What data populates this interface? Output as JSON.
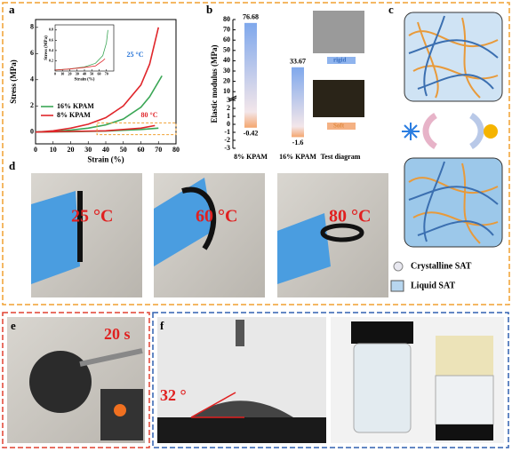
{
  "panel_labels": [
    "a",
    "b",
    "c",
    "d",
    "e",
    "f"
  ],
  "chart_data": [
    {
      "type": "line",
      "xlabel": "Strain (%)",
      "ylabel": "Stress (MPa)",
      "xlim": [
        0,
        80
      ],
      "ylim": [
        -0.9,
        8.6
      ],
      "xticks": [
        0,
        10,
        20,
        30,
        40,
        50,
        60,
        70,
        80
      ],
      "yticks": [
        0,
        2,
        4,
        6,
        8
      ],
      "series": [
        {
          "name": "16% KPAM",
          "color": "#3aa655",
          "x": [
            0,
            10,
            20,
            30,
            40,
            50,
            60,
            65,
            72
          ],
          "values": [
            0,
            0.05,
            0.15,
            0.3,
            0.55,
            1.0,
            1.9,
            2.7,
            4.3
          ]
        },
        {
          "name": "8%  KPAM",
          "color": "#e0262b",
          "x": [
            0,
            10,
            20,
            30,
            40,
            50,
            60,
            65,
            70
          ],
          "values": [
            0,
            0.1,
            0.3,
            0.6,
            1.1,
            2.0,
            3.6,
            5.2,
            8.0
          ]
        },
        {
          "color": "#3aa655",
          "x": [
            0,
            20,
            40,
            60,
            70
          ],
          "values": [
            0,
            0.03,
            0.08,
            0.2,
            0.3
          ]
        },
        {
          "color": "#e0262b",
          "x": [
            0,
            20,
            40,
            60,
            68
          ],
          "values": [
            0,
            0.05,
            0.1,
            0.3,
            0.5
          ]
        }
      ],
      "annotations": [
        "25 °C",
        "80 °C"
      ]
    },
    {
      "type": "line",
      "xlabel": "Strain (%)",
      "ylabel": "Stress (MPa)",
      "xlim": [
        0,
        80
      ],
      "ylim": [
        0,
        0.9
      ],
      "xticks": [
        0,
        10,
        20,
        30,
        40,
        50,
        60,
        70
      ],
      "yticks": [
        0.2,
        0.4,
        0.6,
        0.8
      ],
      "series": [
        {
          "color": "#3aa655",
          "x": [
            0,
            20,
            40,
            55,
            65,
            70,
            72
          ],
          "values": [
            0.02,
            0.04,
            0.08,
            0.15,
            0.3,
            0.55,
            0.8
          ]
        },
        {
          "color": "#e0262b",
          "x": [
            0,
            20,
            40,
            55,
            65,
            68
          ],
          "values": [
            0.02,
            0.04,
            0.07,
            0.1,
            0.2,
            0.24
          ]
        }
      ]
    },
    {
      "type": "range-bar",
      "ylabel": "Elastic modulus (MPa)",
      "categories": [
        "8%  KPAM",
        "16% KPAM",
        "Test diagram"
      ],
      "values": [
        [
          76.68,
          -0.42
        ],
        [
          33.67,
          -1.6
        ],
        null
      ],
      "ylim": [
        -3,
        3
      ],
      "yticks": [
        -3,
        -2,
        -1,
        0,
        1,
        2,
        3
      ],
      "ylim_upper": [
        5,
        80
      ],
      "yticks_upper": [
        10,
        20,
        30,
        40,
        50,
        60,
        70,
        80
      ],
      "legend": [
        {
          "name": "rigid",
          "color": "#8fb4ee"
        },
        {
          "name": "Soft",
          "color": "#f4b183"
        }
      ]
    }
  ],
  "diagram": {
    "legend": [
      "Crystalline SAT",
      "Liquid SAT"
    ]
  },
  "photos": {
    "temperatures": [
      "25 °C",
      "60 °C",
      "80 °C"
    ],
    "time": "20 s",
    "angle": "32 °"
  }
}
